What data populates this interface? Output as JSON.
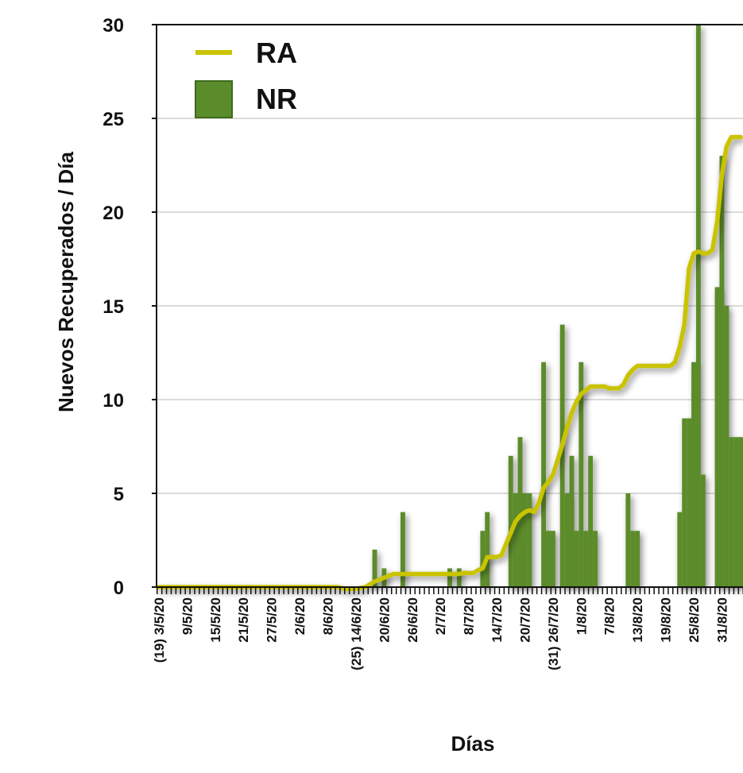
{
  "chart_data": {
    "type": "combo",
    "y_label": "Nuevos Recuperados / Día",
    "x_label": "Días",
    "ylim": [
      0,
      30
    ],
    "yticks": [
      0,
      5,
      10,
      15,
      20,
      25,
      30
    ],
    "grid": true,
    "legend": "top-left",
    "categories": [
      "(19) 3/5/20",
      null,
      null,
      null,
      null,
      null,
      "9/5/20",
      null,
      null,
      null,
      null,
      null,
      "15/5/20",
      null,
      null,
      null,
      null,
      null,
      "21/5/20",
      null,
      null,
      null,
      null,
      null,
      "27/5/20",
      null,
      null,
      null,
      null,
      null,
      "2/6/20",
      null,
      null,
      null,
      null,
      null,
      "8/6/20",
      null,
      null,
      null,
      null,
      null,
      "(25) 14/6/20",
      null,
      null,
      null,
      null,
      null,
      "20/6/20",
      null,
      null,
      null,
      null,
      null,
      "26/6/20",
      null,
      null,
      null,
      null,
      null,
      "2/7/20",
      null,
      null,
      null,
      null,
      null,
      "8/7/20",
      null,
      null,
      null,
      null,
      null,
      "14/7/20",
      null,
      null,
      null,
      null,
      null,
      "20/7/20",
      null,
      null,
      null,
      null,
      null,
      "(31) 26/7/20",
      null,
      null,
      null,
      null,
      null,
      "1/8/20",
      null,
      null,
      null,
      null,
      null,
      "7/8/20",
      null,
      null,
      null,
      null,
      null,
      "13/8/20",
      null,
      null,
      null,
      null,
      null,
      "19/8/20",
      null,
      null,
      null,
      null,
      null,
      "25/8/20",
      null,
      null,
      null,
      null,
      null,
      "31/8/20",
      null,
      null,
      null,
      null
    ],
    "series": [
      {
        "name": "RA",
        "type": "line",
        "color": "#c9c300",
        "values": [
          0,
          0,
          0,
          0,
          0,
          0,
          0,
          0,
          0,
          0,
          0,
          0,
          0,
          0,
          0,
          0,
          0,
          0,
          0,
          0,
          0,
          0,
          0,
          0,
          0,
          0,
          0,
          0,
          0,
          0,
          0,
          0,
          0,
          0,
          0,
          0,
          0,
          0,
          0,
          -0.05,
          -0.1,
          -0.1,
          -0.1,
          -0.05,
          0,
          0.15,
          0.3,
          0.4,
          0.5,
          0.6,
          0.7,
          0.7,
          0.7,
          0.7,
          0.7,
          0.7,
          0.7,
          0.7,
          0.7,
          0.7,
          0.7,
          0.7,
          0.7,
          0.7,
          0.7,
          0.75,
          0.75,
          0.75,
          0.9,
          1,
          1.6,
          1.6,
          1.6,
          1.7,
          2.3,
          2.9,
          3.5,
          3.8,
          4,
          4.1,
          4,
          4.5,
          5.3,
          5.6,
          6,
          6.8,
          7.6,
          8.5,
          9.3,
          9.9,
          10.3,
          10.5,
          10.7,
          10.7,
          10.7,
          10.7,
          10.6,
          10.6,
          10.6,
          10.8,
          11.3,
          11.6,
          11.8,
          11.8,
          11.8,
          11.8,
          11.8,
          11.8,
          11.8,
          11.8,
          12,
          12.8,
          14,
          17,
          17.8,
          17.9,
          17.8,
          17.8,
          18,
          19.5,
          22,
          23.5,
          24,
          24,
          24
        ]
      },
      {
        "name": "NR",
        "type": "bar",
        "color": "#5b8c2c",
        "values": [
          0,
          0,
          0,
          0,
          0,
          0,
          0,
          0,
          0,
          0,
          0,
          0,
          0,
          0,
          0,
          0,
          0,
          0,
          0,
          0,
          0,
          0,
          0,
          0,
          0,
          0,
          0,
          0,
          0,
          0,
          0,
          0,
          0,
          0,
          0,
          0,
          0,
          0,
          0,
          0,
          0,
          0,
          0,
          0,
          0,
          0,
          2,
          0,
          1,
          0,
          0,
          0,
          4,
          0,
          0,
          0,
          0,
          0,
          0,
          0,
          0,
          0,
          1,
          0,
          1,
          0,
          0,
          0,
          0,
          3,
          4,
          0,
          0,
          0,
          0,
          7,
          5,
          8,
          5,
          5,
          0,
          0,
          12,
          3,
          3,
          0,
          14,
          5,
          7,
          3,
          12,
          3,
          7,
          3,
          0,
          0,
          0,
          0,
          0,
          0,
          5,
          3,
          3,
          0,
          0,
          0,
          0,
          0,
          0,
          0,
          0,
          4,
          9,
          9,
          12,
          30,
          6,
          0,
          0,
          16,
          23,
          15,
          8,
          8,
          8
        ]
      }
    ]
  }
}
